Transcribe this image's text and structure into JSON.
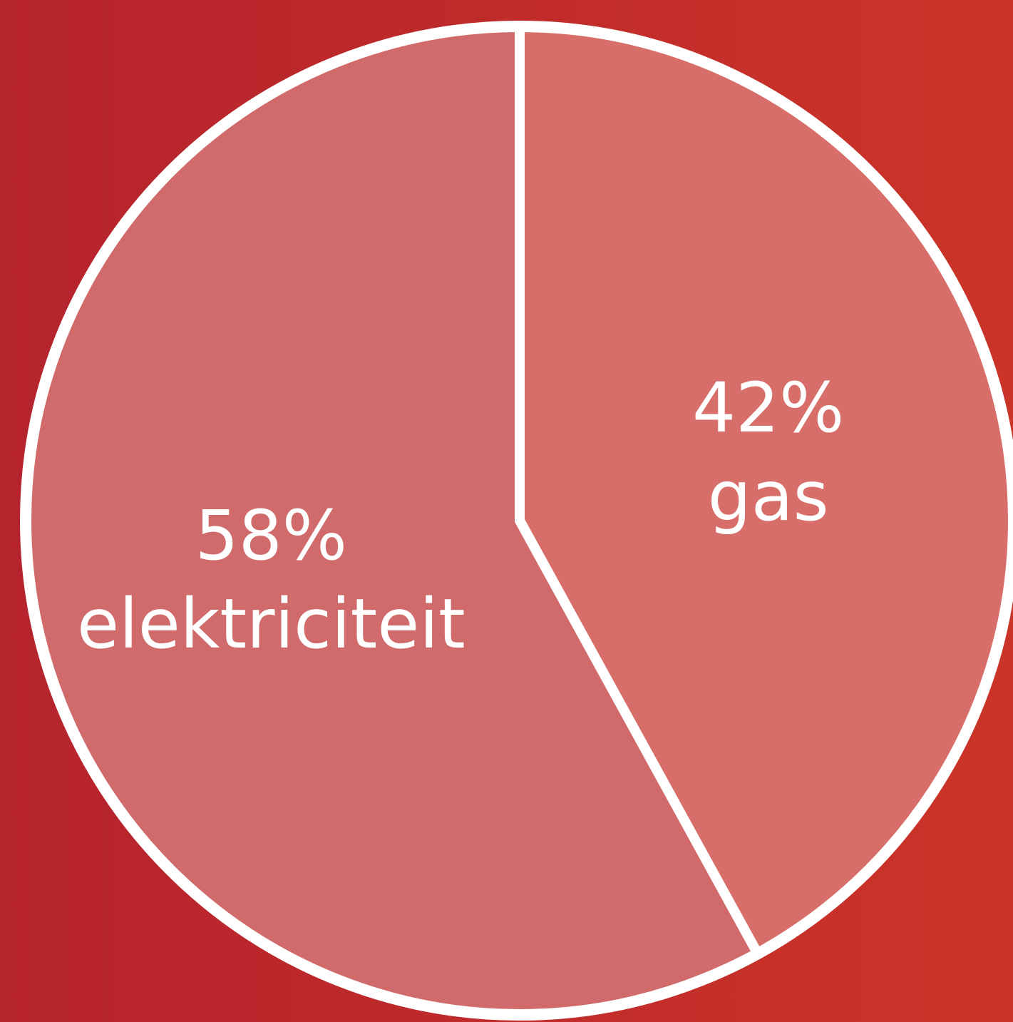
{
  "chart_data": {
    "type": "pie",
    "categories": [
      "gas",
      "elektriciteit"
    ],
    "values": [
      42,
      58
    ],
    "value_labels": [
      "42%",
      "58%"
    ],
    "colors": [
      "#d86e69",
      "#d16b6b"
    ]
  }
}
